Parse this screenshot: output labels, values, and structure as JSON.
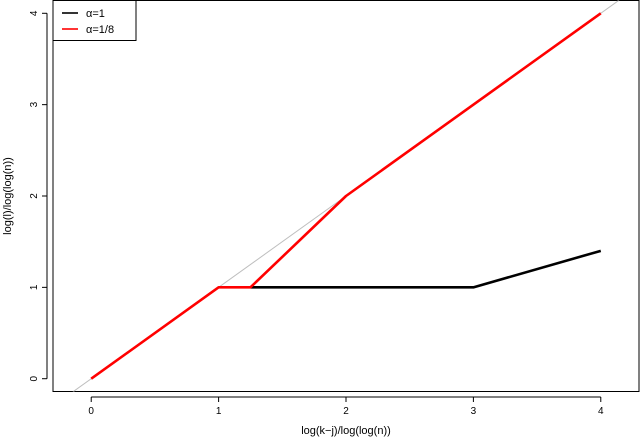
{
  "chart_data": {
    "type": "line",
    "title": "",
    "xlabel": "log(k−j)/log(log(n))",
    "ylabel": "log(l)/log(log(n))",
    "xlim": [
      -0.3,
      4.3
    ],
    "ylim": [
      -0.14,
      4.14
    ],
    "xticks": [
      0,
      1,
      2,
      3,
      4
    ],
    "yticks": [
      0,
      1,
      2,
      3,
      4
    ],
    "grid": false,
    "legend_position": "top-left",
    "reference_line": {
      "x": [
        -0.3,
        4.3
      ],
      "y": [
        -0.3,
        4.3
      ],
      "color": "#bebebe"
    },
    "series": [
      {
        "name": "α=1",
        "color": "#000000",
        "x": [
          1.25,
          3,
          4
        ],
        "y": [
          1,
          1,
          1.4
        ]
      },
      {
        "name": "α=1/8",
        "color": "#ff0000",
        "x": [
          0,
          1,
          1.25,
          2,
          4
        ],
        "y": [
          0,
          1,
          1,
          2,
          4
        ]
      }
    ]
  }
}
